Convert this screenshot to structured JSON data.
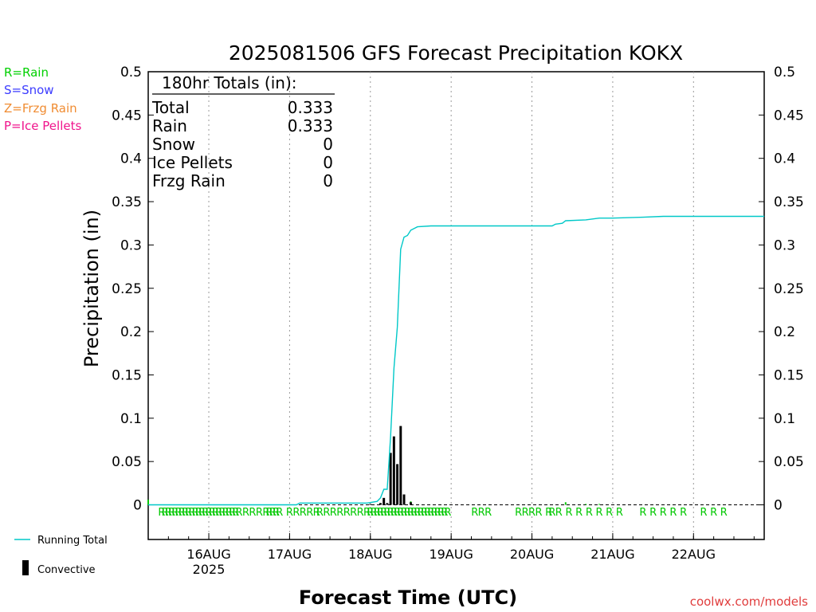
{
  "chart_data": {
    "type": "bar",
    "title": "2025081506 GFS Forecast Precipitation KOKX",
    "ylabel": "Precipitation (in)",
    "xlabel": "Forecast Time (UTC)",
    "ylim": [
      -0.04,
      0.5
    ],
    "xlim": [
      "2025-08-15T06:00",
      "2025-08-22T21:00"
    ],
    "y_ticks": [
      "0.5",
      "0.45",
      "0.4",
      "0.35",
      "0.3",
      "0.25",
      "0.2",
      "0.15",
      "0.1",
      "0.05",
      "0"
    ],
    "x_ticks": [
      {
        "t": "2025-08-16T00:00",
        "label": "16AUG",
        "sub": "2025"
      },
      {
        "t": "2025-08-17T00:00",
        "label": "17AUG",
        "sub": ""
      },
      {
        "t": "2025-08-18T00:00",
        "label": "18AUG",
        "sub": ""
      },
      {
        "t": "2025-08-19T00:00",
        "label": "19AUG",
        "sub": ""
      },
      {
        "t": "2025-08-20T00:00",
        "label": "20AUG",
        "sub": ""
      },
      {
        "t": "2025-08-21T00:00",
        "label": "21AUG",
        "sub": ""
      },
      {
        "t": "2025-08-22T00:00",
        "label": "22AUG",
        "sub": ""
      }
    ],
    "grid": "vertical dotted",
    "series": [
      {
        "name": "Running Total",
        "type": "line",
        "color": "#00c8c8",
        "points": [
          [
            "2025-08-15T06:00",
            0
          ],
          [
            "2025-08-17T02:00",
            0
          ],
          [
            "2025-08-17T03:00",
            0.002
          ],
          [
            "2025-08-17T23:00",
            0.002
          ],
          [
            "2025-08-18T02:00",
            0.004
          ],
          [
            "2025-08-18T03:00",
            0.008
          ],
          [
            "2025-08-18T04:00",
            0.018
          ],
          [
            "2025-08-18T05:00",
            0.018
          ],
          [
            "2025-08-18T06:00",
            0.078
          ],
          [
            "2025-08-18T07:00",
            0.158
          ],
          [
            "2025-08-18T08:00",
            0.205
          ],
          [
            "2025-08-18T09:00",
            0.295
          ],
          [
            "2025-08-18T10:00",
            0.309
          ],
          [
            "2025-08-18T11:00",
            0.311
          ],
          [
            "2025-08-18T12:00",
            0.317
          ],
          [
            "2025-08-18T14:00",
            0.321
          ],
          [
            "2025-08-18T18:00",
            0.322
          ],
          [
            "2025-08-20T06:00",
            0.322
          ],
          [
            "2025-08-20T07:00",
            0.324
          ],
          [
            "2025-08-20T09:00",
            0.325
          ],
          [
            "2025-08-20T10:00",
            0.328
          ],
          [
            "2025-08-20T16:00",
            0.329
          ],
          [
            "2025-08-20T18:00",
            0.33
          ],
          [
            "2025-08-20T20:00",
            0.331
          ],
          [
            "2025-08-21T00:00",
            0.331
          ],
          [
            "2025-08-21T09:00",
            0.332
          ],
          [
            "2025-08-21T15:00",
            0.333
          ],
          [
            "2025-08-22T21:00",
            0.333
          ]
        ]
      },
      {
        "name": "Convective",
        "type": "bar",
        "color": "#000000",
        "points": [
          [
            "2025-08-18T00:00",
            0.001
          ],
          [
            "2025-08-18T03:00",
            0.002
          ],
          [
            "2025-08-18T04:00",
            0.008
          ],
          [
            "2025-08-18T05:00",
            0.002
          ],
          [
            "2025-08-18T06:00",
            0.06
          ],
          [
            "2025-08-18T07:00",
            0.079
          ],
          [
            "2025-08-18T08:00",
            0.047
          ],
          [
            "2025-08-18T09:00",
            0.091
          ],
          [
            "2025-08-18T10:00",
            0.012
          ],
          [
            "2025-08-18T12:00",
            0.003
          ]
        ]
      },
      {
        "name": "Rain",
        "type": "bar",
        "color": "#00c800",
        "points": [
          [
            "2025-08-15T06:00",
            0.006
          ],
          [
            "2025-08-18T03:00",
            0.002
          ],
          [
            "2025-08-18T04:00",
            0.005
          ],
          [
            "2025-08-18T06:00",
            0.056
          ],
          [
            "2025-08-18T07:00",
            0.075
          ],
          [
            "2025-08-18T08:00",
            0.044
          ],
          [
            "2025-08-18T09:00",
            0.088
          ],
          [
            "2025-08-18T10:00",
            0.009
          ],
          [
            "2025-08-18T12:00",
            0.004
          ],
          [
            "2025-08-20T10:00",
            0.003
          ],
          [
            "2025-08-20T16:00",
            0.001
          ],
          [
            "2025-08-20T20:00",
            0.001
          ]
        ]
      }
    ],
    "precip_type_row": {
      "letter": "R",
      "color": "#00c800",
      "times": [
        "2025-08-15T10:00",
        "2025-08-15T11:00",
        "2025-08-15T12:00",
        "2025-08-15T13:00",
        "2025-08-15T14:00",
        "2025-08-15T15:00",
        "2025-08-15T16:00",
        "2025-08-15T17:00",
        "2025-08-15T18:00",
        "2025-08-15T19:00",
        "2025-08-15T20:00",
        "2025-08-15T21:00",
        "2025-08-15T22:00",
        "2025-08-15T23:00",
        "2025-08-16T00:00",
        "2025-08-16T01:00",
        "2025-08-16T02:00",
        "2025-08-16T03:00",
        "2025-08-16T04:00",
        "2025-08-16T05:00",
        "2025-08-16T06:00",
        "2025-08-16T07:00",
        "2025-08-16T08:00",
        "2025-08-16T09:00",
        "2025-08-16T11:00",
        "2025-08-16T13:00",
        "2025-08-16T15:00",
        "2025-08-16T17:00",
        "2025-08-16T18:00",
        "2025-08-16T19:00",
        "2025-08-16T20:00",
        "2025-08-16T21:00",
        "2025-08-17T00:00",
        "2025-08-17T02:00",
        "2025-08-17T04:00",
        "2025-08-17T06:00",
        "2025-08-17T08:00",
        "2025-08-17T09:00",
        "2025-08-17T11:00",
        "2025-08-17T13:00",
        "2025-08-17T15:00",
        "2025-08-17T17:00",
        "2025-08-17T19:00",
        "2025-08-17T21:00",
        "2025-08-17T23:00",
        "2025-08-18T00:00",
        "2025-08-18T01:00",
        "2025-08-18T02:00",
        "2025-08-18T03:00",
        "2025-08-18T04:00",
        "2025-08-18T05:00",
        "2025-08-18T06:00",
        "2025-08-18T07:00",
        "2025-08-18T08:00",
        "2025-08-18T09:00",
        "2025-08-18T10:00",
        "2025-08-18T11:00",
        "2025-08-18T12:00",
        "2025-08-18T13:00",
        "2025-08-18T14:00",
        "2025-08-18T15:00",
        "2025-08-18T16:00",
        "2025-08-18T17:00",
        "2025-08-18T18:00",
        "2025-08-18T19:00",
        "2025-08-18T20:00",
        "2025-08-18T21:00",
        "2025-08-18T22:00",
        "2025-08-18T23:00",
        "2025-08-19T07:00",
        "2025-08-19T09:00",
        "2025-08-19T11:00",
        "2025-08-19T20:00",
        "2025-08-19T22:00",
        "2025-08-20T00:00",
        "2025-08-20T02:00",
        "2025-08-20T05:00",
        "2025-08-20T06:00",
        "2025-08-20T08:00",
        "2025-08-20T11:00",
        "2025-08-20T14:00",
        "2025-08-20T17:00",
        "2025-08-20T20:00",
        "2025-08-20T23:00",
        "2025-08-21T02:00",
        "2025-08-21T09:00",
        "2025-08-21T12:00",
        "2025-08-21T15:00",
        "2025-08-21T18:00",
        "2025-08-21T21:00",
        "2025-08-22T03:00",
        "2025-08-22T06:00",
        "2025-08-22T09:00"
      ]
    }
  },
  "totals_box": {
    "header": "180hr Totals (in):",
    "rows": [
      {
        "label": "Total",
        "value": "0.333"
      },
      {
        "label": "Rain",
        "value": "0.333"
      },
      {
        "label": "Snow",
        "value": "0"
      },
      {
        "label": "Ice Pellets",
        "value": "0"
      },
      {
        "label": "Frzg Rain",
        "value": "0"
      }
    ]
  },
  "type_legend": [
    {
      "text": "R=Rain",
      "color": "#00d000"
    },
    {
      "text": "S=Snow",
      "color": "#3c3cff"
    },
    {
      "text": "Z=Frzg Rain",
      "color": "#f08c32"
    },
    {
      "text": "P=Ice Pellets",
      "color": "#f0148c"
    }
  ],
  "series_legend": {
    "running_total": "Running Total",
    "convective": "Convective"
  },
  "credit": {
    "text": "coolwx.com/models",
    "color": "#e03c3c"
  },
  "colors": {
    "running_total": "#00c8c8",
    "convective": "#000000",
    "rain_bar": "#00c800"
  }
}
